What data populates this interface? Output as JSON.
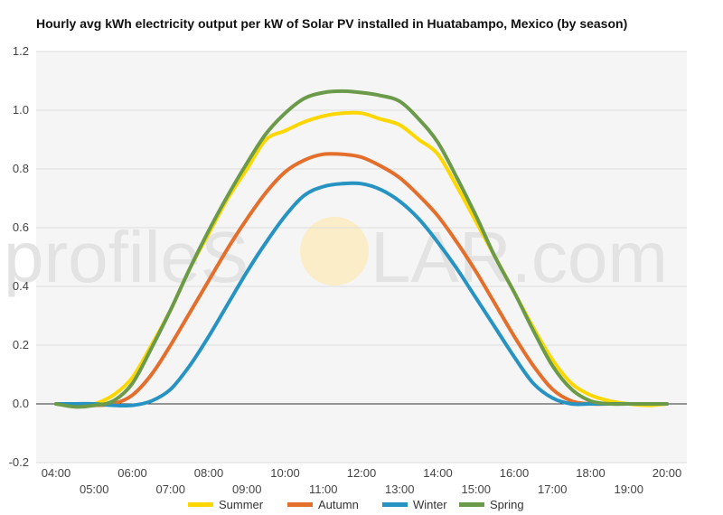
{
  "chart_data": {
    "type": "line",
    "title": "Hourly avg kWh electricity output per kW of Solar PV installed in Huatabampo, Mexico (by season)",
    "xlabel": "",
    "ylabel": "",
    "x": [
      "04:00",
      "04:30",
      "05:00",
      "05:30",
      "06:00",
      "06:30",
      "07:00",
      "07:30",
      "08:00",
      "08:30",
      "09:00",
      "09:30",
      "10:00",
      "10:30",
      "11:00",
      "11:30",
      "12:00",
      "12:30",
      "13:00",
      "13:30",
      "14:00",
      "14:30",
      "15:00",
      "15:30",
      "16:00",
      "16:30",
      "17:00",
      "17:30",
      "18:00",
      "18:30",
      "19:00",
      "19:30",
      "20:00"
    ],
    "x_tick_labels_upper": [
      "04:00",
      "06:00",
      "08:00",
      "10:00",
      "12:00",
      "14:00",
      "16:00",
      "18:00",
      "20:00"
    ],
    "x_tick_labels_lower": [
      "05:00",
      "07:00",
      "09:00",
      "11:00",
      "13:00",
      "15:00",
      "17:00",
      "19:00"
    ],
    "ylim": [
      -0.2,
      1.2
    ],
    "y_ticks": [
      "-0.2",
      "0.0",
      "0.2",
      "0.4",
      "0.6",
      "0.8",
      "1.0",
      "1.2"
    ],
    "grid": true,
    "legend_position": "bottom",
    "series": [
      {
        "name": "Summer",
        "color": "#FFD700",
        "values": [
          0.0,
          -0.005,
          0.0,
          0.03,
          0.09,
          0.2,
          0.32,
          0.46,
          0.58,
          0.7,
          0.8,
          0.9,
          0.93,
          0.96,
          0.98,
          0.99,
          0.99,
          0.97,
          0.95,
          0.9,
          0.85,
          0.74,
          0.62,
          0.5,
          0.38,
          0.26,
          0.15,
          0.07,
          0.03,
          0.01,
          0.0,
          -0.005,
          0.0
        ]
      },
      {
        "name": "Autumn",
        "color": "#E46E2B",
        "values": [
          0.0,
          -0.005,
          -0.005,
          0.0,
          0.03,
          0.1,
          0.2,
          0.31,
          0.42,
          0.53,
          0.63,
          0.72,
          0.79,
          0.83,
          0.85,
          0.85,
          0.84,
          0.81,
          0.77,
          0.71,
          0.64,
          0.55,
          0.45,
          0.34,
          0.23,
          0.13,
          0.05,
          0.01,
          0.0,
          0.0,
          0.0,
          0.0,
          0.0
        ]
      },
      {
        "name": "Winter",
        "color": "#2693C3",
        "values": [
          0.0,
          0.0,
          0.0,
          -0.005,
          -0.005,
          0.01,
          0.05,
          0.13,
          0.23,
          0.34,
          0.45,
          0.55,
          0.64,
          0.71,
          0.74,
          0.75,
          0.75,
          0.73,
          0.69,
          0.63,
          0.55,
          0.46,
          0.36,
          0.26,
          0.16,
          0.07,
          0.02,
          0.0,
          0.0,
          0.0,
          0.0,
          0.0,
          0.0
        ]
      },
      {
        "name": "Spring",
        "color": "#6A9A4A",
        "values": [
          0.0,
          -0.01,
          -0.005,
          0.01,
          0.07,
          0.19,
          0.32,
          0.46,
          0.59,
          0.71,
          0.82,
          0.92,
          0.99,
          1.04,
          1.06,
          1.065,
          1.06,
          1.05,
          1.03,
          0.97,
          0.89,
          0.77,
          0.64,
          0.5,
          0.38,
          0.25,
          0.13,
          0.05,
          0.01,
          0.0,
          0.0,
          0.0,
          0.0
        ]
      }
    ]
  },
  "watermark": {
    "left": "profileS",
    "right": "LAR.com"
  }
}
